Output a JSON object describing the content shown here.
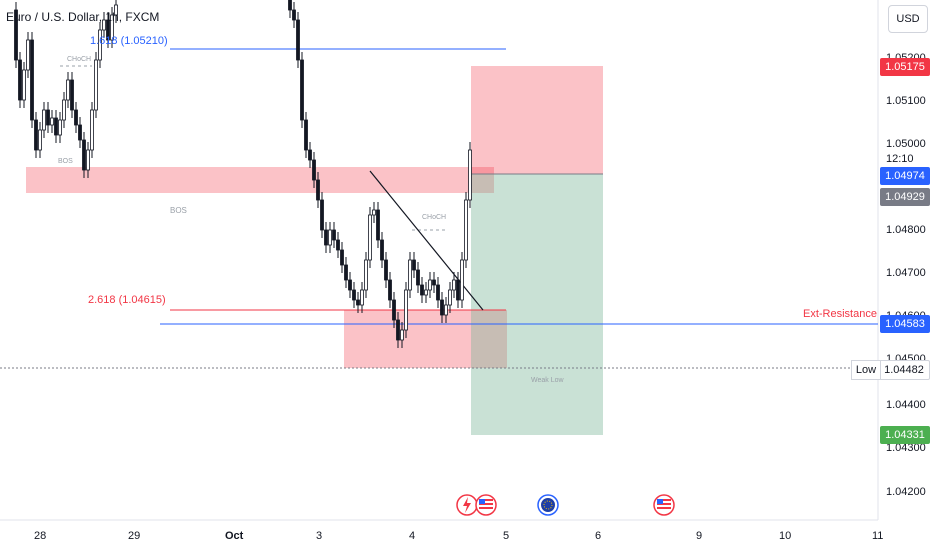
{
  "symbol_title": "Euro / U.S. Dollar, 1h, FXCM",
  "currency_button": "USD",
  "price_axis": {
    "ticks": [
      "1.05200",
      "1.05100",
      "1.05000",
      "1.04800",
      "1.04700",
      "1.04600",
      "1.04500",
      "1.04400",
      "1.04300",
      "1.04200"
    ],
    "countdown": "12:10"
  },
  "price_tags": {
    "tp": {
      "value": "1.05175",
      "color": "#f23645"
    },
    "current": {
      "value": "1.04974",
      "color": "#2962ff"
    },
    "entry": {
      "value": "1.04929",
      "color": "#787b86"
    },
    "ext_resistance": {
      "value": "1.04583",
      "color": "#2962ff"
    },
    "low": {
      "value": "1.04482"
    },
    "sl": {
      "value": "1.04331",
      "color": "#4caf50"
    }
  },
  "time_axis": [
    "28",
    "29",
    "Oct",
    "3",
    "4",
    "5",
    "6",
    "9",
    "10",
    "11"
  ],
  "annotations": {
    "fib_top": "1.618 (1.05210)",
    "fib_bottom": "2.618 (1.04615)",
    "ext_resistance": "Ext-Resistance",
    "low": "Low",
    "bos_small": "BOS",
    "bos_zone": "BOS",
    "choch_left": "CHoCH",
    "choch_right": "CHoCH",
    "weak_low": "Weak Low"
  }
}
